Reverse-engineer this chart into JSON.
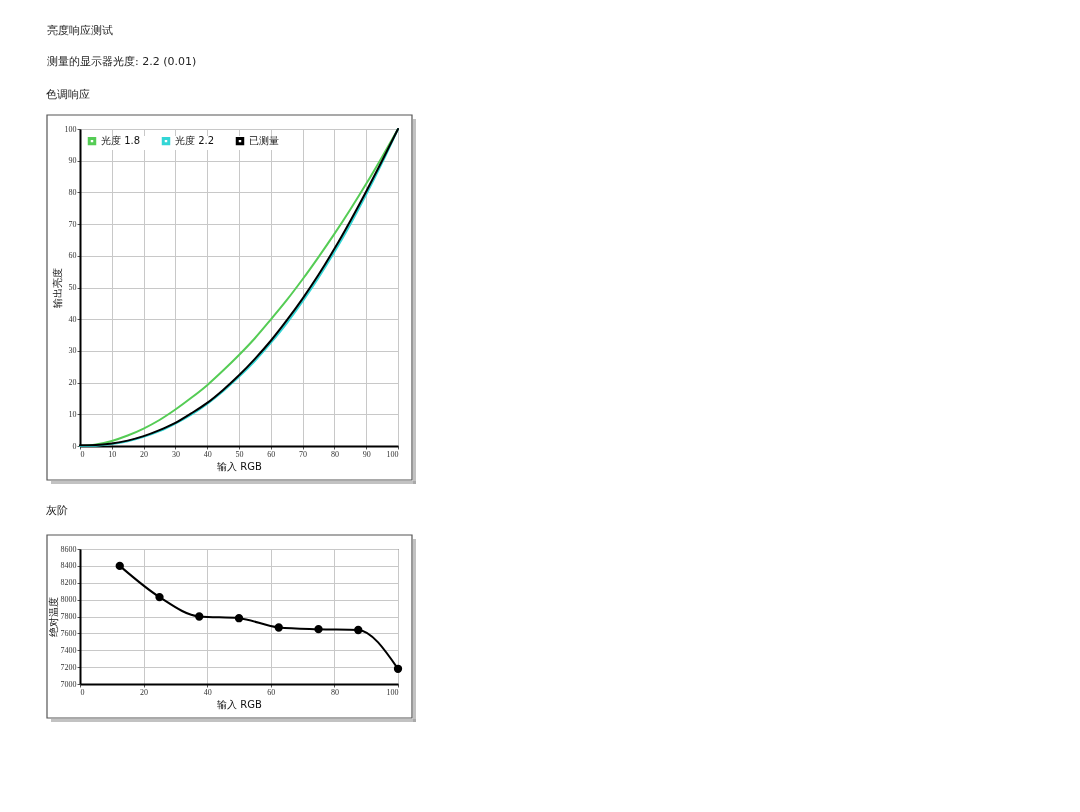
{
  "chart_data": [
    {
      "type": "line",
      "title": "色调响应",
      "annotations": [
        "亮度响应测试",
        "测量的显示器光度: 2.2 (0.01)"
      ],
      "xlabel": "输入 RGB",
      "ylabel": "输出亮度",
      "x": [
        0,
        5,
        10,
        15,
        20,
        25,
        30,
        35,
        40,
        45,
        50,
        55,
        60,
        65,
        70,
        75,
        80,
        85,
        90,
        95,
        100
      ],
      "series": [
        {
          "name": "光度 1.8",
          "color": "#55cc55",
          "values": [
            0,
            0.5,
            1.6,
            3.3,
            5.5,
            8.2,
            11.5,
            15.2,
            19.2,
            23.8,
            28.7,
            34,
            39.9,
            46,
            52.6,
            59.6,
            66.9,
            74.6,
            82.7,
            91.2,
            100
          ]
        },
        {
          "name": "光度 2.2",
          "color": "#33d6d6",
          "values": [
            0,
            0.1,
            0.6,
            1.5,
            2.9,
            4.7,
            7.1,
            9.9,
            13.3,
            17.3,
            21.8,
            26.8,
            32.5,
            38.7,
            45.6,
            53.1,
            61.2,
            69.9,
            79.3,
            89.3,
            100
          ]
        },
        {
          "name": "已测量",
          "color": "#000000",
          "values": [
            0.2,
            0.3,
            0.8,
            1.7,
            3.1,
            5,
            7.3,
            10.3,
            13.6,
            17.7,
            22.3,
            27.5,
            33.2,
            39.6,
            46.5,
            54,
            62.2,
            71,
            80.3,
            90,
            100
          ]
        }
      ],
      "xlim": [
        0,
        100
      ],
      "ylim": [
        0,
        100
      ],
      "xticks": [
        0,
        10,
        20,
        30,
        40,
        50,
        60,
        70,
        80,
        90,
        100
      ],
      "yticks": [
        0,
        10,
        20,
        30,
        40,
        50,
        60,
        70,
        80,
        90,
        100
      ],
      "grid": true,
      "legend": "top left",
      "marker": "none",
      "line_style": "solid"
    },
    {
      "type": "line",
      "title": "灰阶",
      "xlabel": "输入 RGB",
      "ylabel": "绝对温度",
      "x": [
        12.5,
        25,
        37.5,
        50,
        62.5,
        75,
        87.5,
        100
      ],
      "series": [
        {
          "color": "#000000",
          "values": [
            8400,
            8030,
            7800,
            7780,
            7670,
            7650,
            7640,
            7180
          ]
        }
      ],
      "xlim": [
        0,
        100
      ],
      "ylim": [
        7000,
        8600
      ],
      "xticks": [
        0,
        20,
        40,
        60,
        80,
        100
      ],
      "yticks": [
        7000,
        7200,
        7400,
        7600,
        7800,
        8000,
        8200,
        8400,
        8600
      ],
      "grid": true,
      "marker": "circle",
      "line_style": "solid"
    }
  ]
}
